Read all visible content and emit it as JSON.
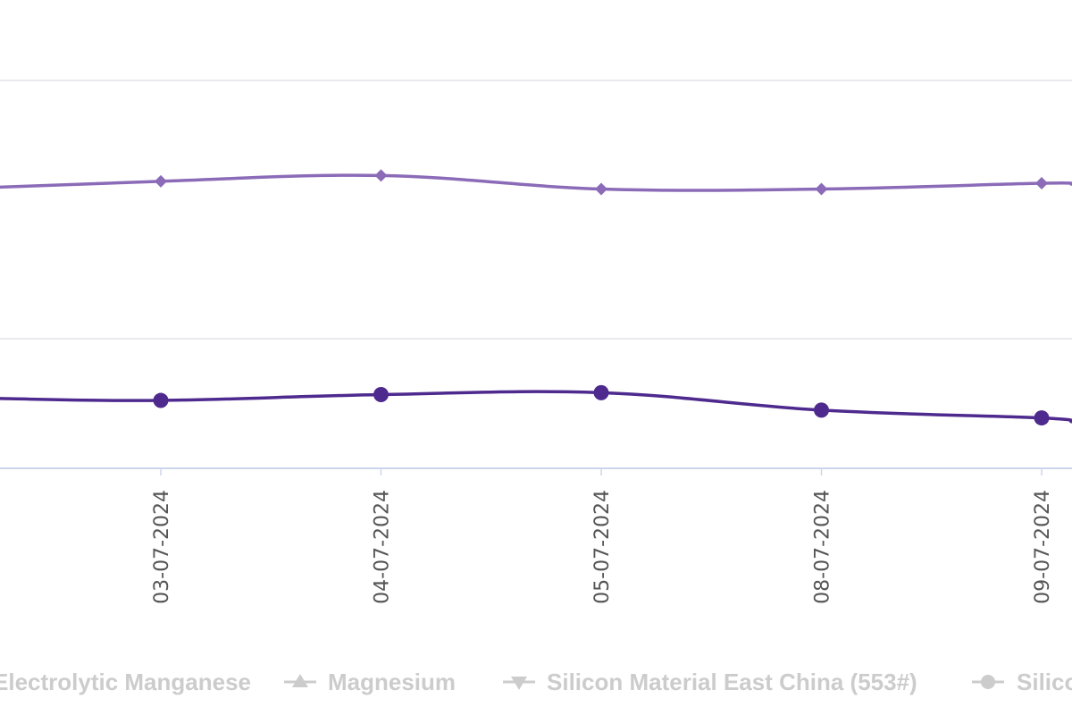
{
  "chart_data": {
    "type": "line",
    "categories": [
      "03-07-2024",
      "04-07-2024",
      "05-07-2024",
      "08-07-2024",
      "09-07-2024"
    ],
    "series": [
      {
        "name": "",
        "color": "#8B6BB8",
        "marker": "diamond",
        "y_values": [
          0.52,
          0.49,
          0.56,
          0.56,
          0.53
        ],
        "y_left_edge": 0.55,
        "y_right_edge": 0.535
      },
      {
        "name": "",
        "color": "#4E2A8E",
        "marker": "circle",
        "y_values": 1.65,
        "y_list": [
          1.65,
          1.62,
          1.61,
          1.7,
          1.74
        ],
        "y_left_edge": 1.64,
        "y_right_edge": 1.76
      }
    ],
    "grid": true,
    "xlabel": "",
    "ylabel": "",
    "ylim": [
      0,
      2
    ]
  },
  "legend": {
    "items": [
      {
        "label": "Electrolytic Manganese",
        "marker": "none"
      },
      {
        "label": "Magnesium",
        "marker": "triangle-up"
      },
      {
        "label": "Silicon Material East China (553#)",
        "marker": "triangle-down"
      },
      {
        "label": "Silicon",
        "marker": "circle"
      }
    ],
    "color": "#cccccc"
  }
}
